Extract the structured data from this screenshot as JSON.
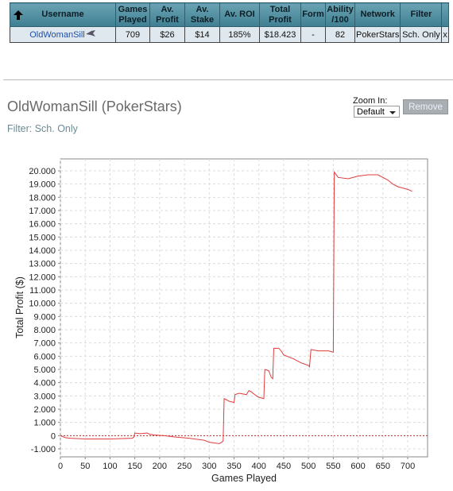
{
  "table": {
    "headers": [
      "Username",
      "Games Played",
      "Av. Profit",
      "Av. Stake",
      "Av. ROI",
      "Total Profit",
      "Form",
      "Ability /100",
      "Network",
      "Filter"
    ],
    "rows": [
      [
        "OldWomanSill",
        "709",
        "$26",
        "$14",
        "185%",
        "$18.423",
        "-",
        "82",
        "PokerStars",
        "Sch. Only"
      ]
    ],
    "close": "x"
  },
  "profile_title": "OldWomanSill (PokerStars)",
  "filter_text": "Filter: Sch. Only",
  "zoom_label": "Zoom In:",
  "zoom_value": "Default",
  "remove_button": "Remove",
  "chart_data": {
    "type": "line",
    "x_label": "Games Played",
    "y_label": "Total Profit ($)",
    "color": "#e03c3c",
    "x": [
      0,
      10,
      20,
      50,
      100,
      145,
      148,
      150,
      160,
      175,
      180,
      190,
      210,
      230,
      260,
      290,
      300,
      320,
      325,
      328,
      330,
      340,
      350,
      352,
      360,
      375,
      380,
      385,
      395,
      400,
      410,
      412,
      420,
      425,
      428,
      430,
      440,
      445,
      450,
      470,
      485,
      500,
      502,
      505,
      520,
      540,
      550,
      552,
      560,
      580,
      600,
      620,
      640,
      660,
      670,
      680,
      700,
      709
    ],
    "values": [
      0,
      -150,
      -200,
      -250,
      -250,
      -200,
      -100,
      200,
      150,
      200,
      100,
      50,
      0,
      -100,
      -200,
      -350,
      -500,
      -600,
      -500,
      -400,
      2800,
      2600,
      2500,
      3100,
      3200,
      3100,
      3400,
      3300,
      3000,
      2900,
      2800,
      5000,
      4900,
      4400,
      4300,
      6600,
      6600,
      6400,
      6100,
      5800,
      5500,
      5300,
      5200,
      6500,
      6400,
      6400,
      6300,
      19900,
      19500,
      19400,
      19600,
      19700,
      19700,
      19300,
      19000,
      18800,
      18600,
      18450
    ],
    "xlim": [
      0,
      740
    ],
    "ylim": [
      -1600,
      20900
    ],
    "xticks": [
      0,
      50,
      100,
      150,
      200,
      250,
      300,
      350,
      400,
      450,
      500,
      550,
      600,
      650,
      700
    ],
    "yticks": [
      {
        "value": -1000,
        "label": "-1.000"
      },
      0,
      {
        "value": 1000,
        "label": "1.000"
      },
      {
        "value": 2000,
        "label": "2.000"
      },
      {
        "value": 3000,
        "label": "3.000"
      },
      {
        "value": 4000,
        "label": "4.000"
      },
      {
        "value": 5000,
        "label": "5.000"
      },
      {
        "value": 6000,
        "label": "6.000"
      },
      {
        "value": 7000,
        "label": "7.000"
      },
      {
        "value": 8000,
        "label": "8.000"
      },
      {
        "value": 9000,
        "label": "9.000"
      },
      {
        "value": 10000,
        "label": "10.000"
      },
      {
        "value": 11000,
        "label": "11.000"
      },
      {
        "value": 12000,
        "label": "12.000"
      },
      {
        "value": 13000,
        "label": "13.000"
      },
      {
        "value": 14000,
        "label": "14.000"
      },
      {
        "value": 15000,
        "label": "15.000"
      },
      {
        "value": 16000,
        "label": "16.000"
      },
      {
        "value": 17000,
        "label": "17.000"
      },
      {
        "value": 18000,
        "label": "18.000"
      },
      {
        "value": 19000,
        "label": "19.000"
      },
      {
        "value": 20000,
        "label": "20.000"
      }
    ],
    "grid": true
  }
}
